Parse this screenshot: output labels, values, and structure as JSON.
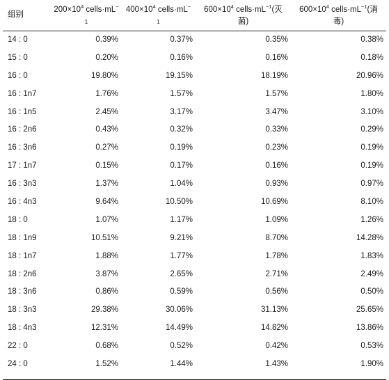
{
  "header": {
    "group": "组别",
    "col1": {
      "base": "200×10",
      "exp": "4",
      "unit": " cells·mL",
      "unit_exp": "−",
      "wrap": "1"
    },
    "col2": {
      "base": "400×10",
      "exp": "4",
      "unit": " cells·mL",
      "unit_exp": "−",
      "wrap": "1"
    },
    "col3": {
      "base": "600×10",
      "exp": "4",
      "unit": " cells·mL",
      "unit_exp": "−1",
      "suffix": "(灭",
      "wrap": "菌)"
    },
    "col4": {
      "base": "600×10",
      "exp": "4",
      "unit": " cells·mL",
      "unit_exp": "−1",
      "suffix": "(消",
      "wrap": "毒)"
    }
  },
  "rows": [
    {
      "group": "14 : 0",
      "v1": "0.39%",
      "v2": "0.37%",
      "v3": "0.35%",
      "v4": "0.38%"
    },
    {
      "group": "15 : 0",
      "v1": "0.20%",
      "v2": "0.16%",
      "v3": "0.16%",
      "v4": "0.18%"
    },
    {
      "group": "16 : 0",
      "v1": "19.80%",
      "v2": "19.15%",
      "v3": "18.19%",
      "v4": "20.96%"
    },
    {
      "group": "16 : 1n7",
      "v1": "1.76%",
      "v2": "1.57%",
      "v3": "1.57%",
      "v4": "1.80%"
    },
    {
      "group": "16 : 1n5",
      "v1": "2.45%",
      "v2": "3.17%",
      "v3": "3.47%",
      "v4": "3.10%"
    },
    {
      "group": "16 : 2n6",
      "v1": "0.43%",
      "v2": "0.32%",
      "v3": "0.33%",
      "v4": "0.29%"
    },
    {
      "group": "16 : 3n6",
      "v1": "0.27%",
      "v2": "0.19%",
      "v3": "0.23%",
      "v4": "0.19%"
    },
    {
      "group": "17 : 1n7",
      "v1": "0.15%",
      "v2": "0.17%",
      "v3": "0.16%",
      "v4": "0.19%"
    },
    {
      "group": "16 : 3n3",
      "v1": "1.37%",
      "v2": "1.04%",
      "v3": "0.93%",
      "v4": "0.97%"
    },
    {
      "group": "16 : 4n3",
      "v1": "9.64%",
      "v2": "10.50%",
      "v3": "10.69%",
      "v4": "8.10%"
    },
    {
      "group": "18 : 0",
      "v1": "1.07%",
      "v2": "1.17%",
      "v3": "1.09%",
      "v4": "1.26%"
    },
    {
      "group": "18 : 1n9",
      "v1": "10.51%",
      "v2": "9.21%",
      "v3": "8.70%",
      "v4": "14.28%"
    },
    {
      "group": "18 : 1n7",
      "v1": "1.88%",
      "v2": "1.77%",
      "v3": "1.78%",
      "v4": "1.83%"
    },
    {
      "group": "18 : 2n6",
      "v1": "3.87%",
      "v2": "2.65%",
      "v3": "2.71%",
      "v4": "2.49%"
    },
    {
      "group": "18 : 3n6",
      "v1": "0.86%",
      "v2": "0.59%",
      "v3": "0.56%",
      "v4": "0.50%"
    },
    {
      "group": "18 : 3n3",
      "v1": "29.38%",
      "v2": "30.06%",
      "v3": "31.13%",
      "v4": "25.65%"
    },
    {
      "group": "18 : 4n3",
      "v1": "12.31%",
      "v2": "14.49%",
      "v3": "14.82%",
      "v4": "13.86%"
    },
    {
      "group": "22 : 0",
      "v1": "0.68%",
      "v2": "0.52%",
      "v3": "0.42%",
      "v4": "0.53%"
    },
    {
      "group": "24 : 0",
      "v1": "1.52%",
      "v2": "1.44%",
      "v3": "1.43%",
      "v4": "1.90%"
    }
  ]
}
